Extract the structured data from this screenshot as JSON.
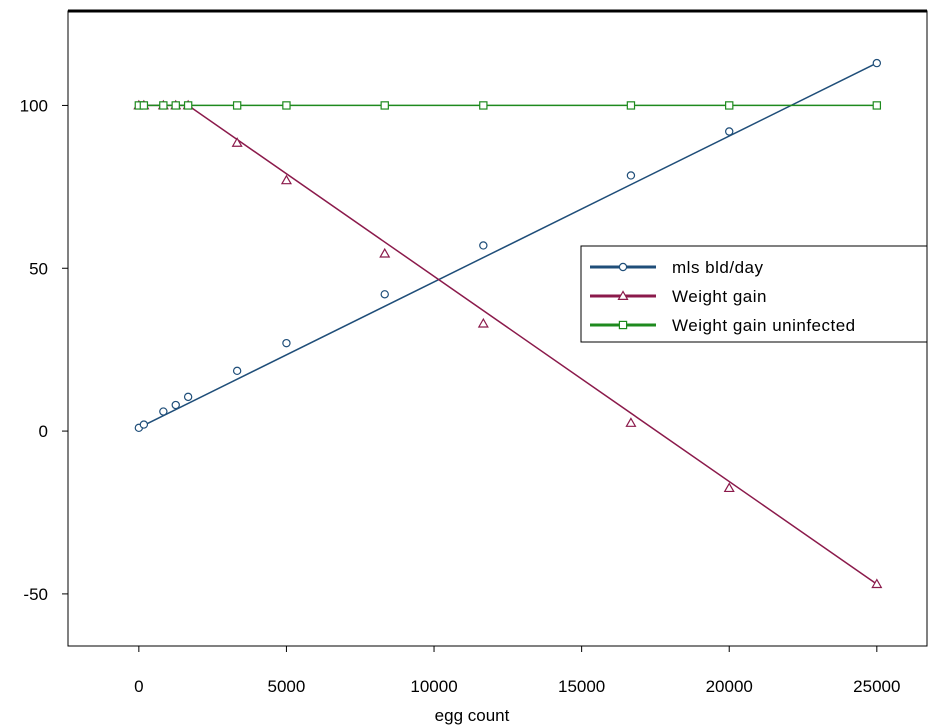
{
  "chart_data": {
    "type": "line",
    "title": "",
    "xlabel": "egg count",
    "ylabel": "",
    "xlim": [
      -2400,
      26700
    ],
    "ylim": [
      -66,
      129
    ],
    "xticks": [
      0,
      5000,
      10000,
      15000,
      20000,
      25000
    ],
    "xtick_labels": [
      "0",
      "5000",
      "10000",
      "15000",
      "20000",
      "25000"
    ],
    "yticks": [
      -50,
      0,
      50,
      100
    ],
    "ytick_labels": [
      "-50",
      "0",
      "50",
      "100"
    ],
    "grid": false,
    "legend_position": "right",
    "series": [
      {
        "name": "mls bld/day",
        "color": "#1f4e79",
        "marker": "circle",
        "line_points": [
          [
            0,
            1
          ],
          [
            25000,
            113
          ]
        ],
        "points": [
          [
            0,
            1
          ],
          [
            170,
            2
          ],
          [
            830,
            6
          ],
          [
            1250,
            8
          ],
          [
            1670,
            10.5
          ],
          [
            3330,
            18.5
          ],
          [
            5000,
            27
          ],
          [
            8330,
            42
          ],
          [
            11670,
            57
          ],
          [
            16670,
            78.5
          ],
          [
            20000,
            92
          ],
          [
            25000,
            113
          ]
        ]
      },
      {
        "name": "Weight gain",
        "color": "#8b1a4b",
        "marker": "triangle",
        "line_points": [
          [
            0,
            100
          ],
          [
            1670,
            100
          ],
          [
            25000,
            -47
          ]
        ],
        "points": [
          [
            0,
            100
          ],
          [
            170,
            100
          ],
          [
            830,
            100
          ],
          [
            1250,
            100
          ],
          [
            1670,
            100
          ],
          [
            3330,
            88.5
          ],
          [
            5000,
            77
          ],
          [
            8330,
            54.5
          ],
          [
            11670,
            33
          ],
          [
            16670,
            2.5
          ],
          [
            20000,
            -17.5
          ],
          [
            25000,
            -47
          ]
        ]
      },
      {
        "name": "Weight gain uninfected",
        "color": "#1e8a1e",
        "marker": "square",
        "line_points": [
          [
            0,
            100
          ],
          [
            25000,
            100
          ]
        ],
        "points": [
          [
            0,
            100
          ],
          [
            170,
            100
          ],
          [
            830,
            100
          ],
          [
            1250,
            100
          ],
          [
            1670,
            100
          ],
          [
            3330,
            100
          ],
          [
            5000,
            100
          ],
          [
            8330,
            100
          ],
          [
            11670,
            100
          ],
          [
            16670,
            100
          ],
          [
            20000,
            100
          ],
          [
            25000,
            100
          ]
        ]
      }
    ]
  }
}
